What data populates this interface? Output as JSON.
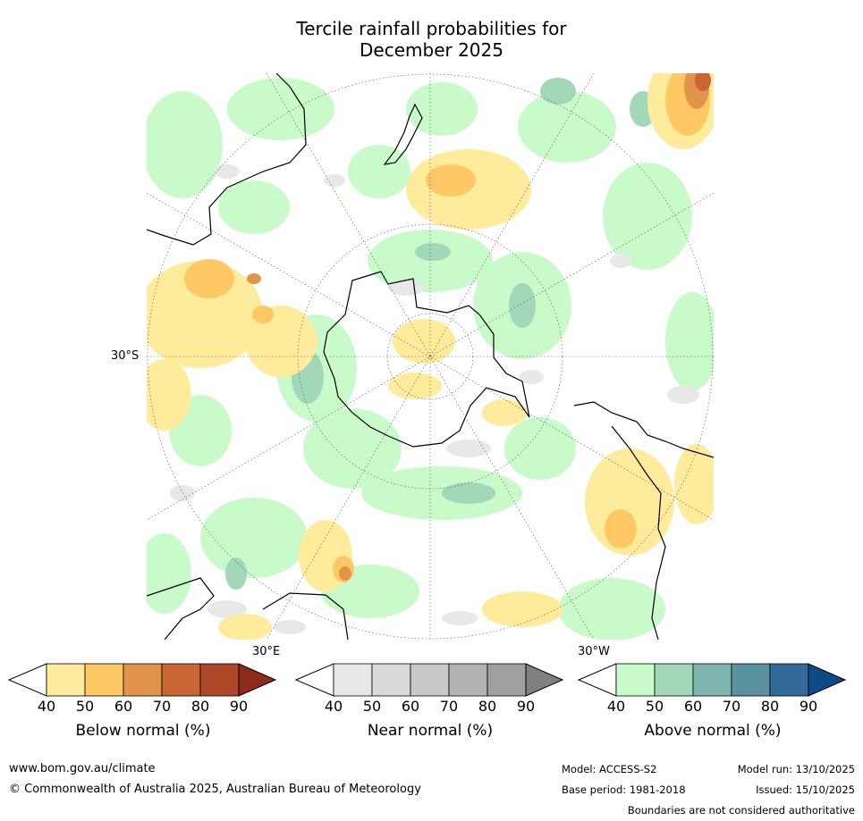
{
  "title": {
    "line1": "Tercile rainfall probabilities for",
    "line2": "December 2025"
  },
  "map": {
    "latitude_label": "30°S",
    "longitude_labels": {
      "east": "30°E",
      "west": "30°W"
    }
  },
  "legends": [
    {
      "title": "Below normal (%)",
      "ticks": [
        "40",
        "50",
        "60",
        "70",
        "80",
        "90"
      ],
      "colors": [
        "#ffffff",
        "#ffeb9c",
        "#fec965",
        "#e0954b",
        "#c96633",
        "#af4828",
        "#8f2b1c"
      ]
    },
    {
      "title": "Near normal (%)",
      "ticks": [
        "40",
        "50",
        "60",
        "70",
        "80",
        "90"
      ],
      "colors": [
        "#ffffff",
        "#e8e8e8",
        "#d9d9d9",
        "#c8c8c8",
        "#b4b4b4",
        "#a0a0a0",
        "#808080"
      ]
    },
    {
      "title": "Above normal (%)",
      "ticks": [
        "40",
        "50",
        "60",
        "70",
        "80",
        "90"
      ],
      "colors": [
        "#ffffff",
        "#c9fbca",
        "#a3d7b9",
        "#7db7b0",
        "#5b92a0",
        "#336a9b",
        "#0d4a86"
      ]
    }
  ],
  "footer": {
    "website": "www.bom.gov.au/climate",
    "copyright": "© Commonwealth of Australia 2025, Australian Bureau of Meteorology",
    "model": "Model: ACCESS-S2",
    "model_run": "Model run: 13/10/2025",
    "base_period": "Base period: 1981-2018",
    "issued": "Issued: 15/10/2025",
    "boundaries": "Boundaries are not considered authoritative"
  }
}
